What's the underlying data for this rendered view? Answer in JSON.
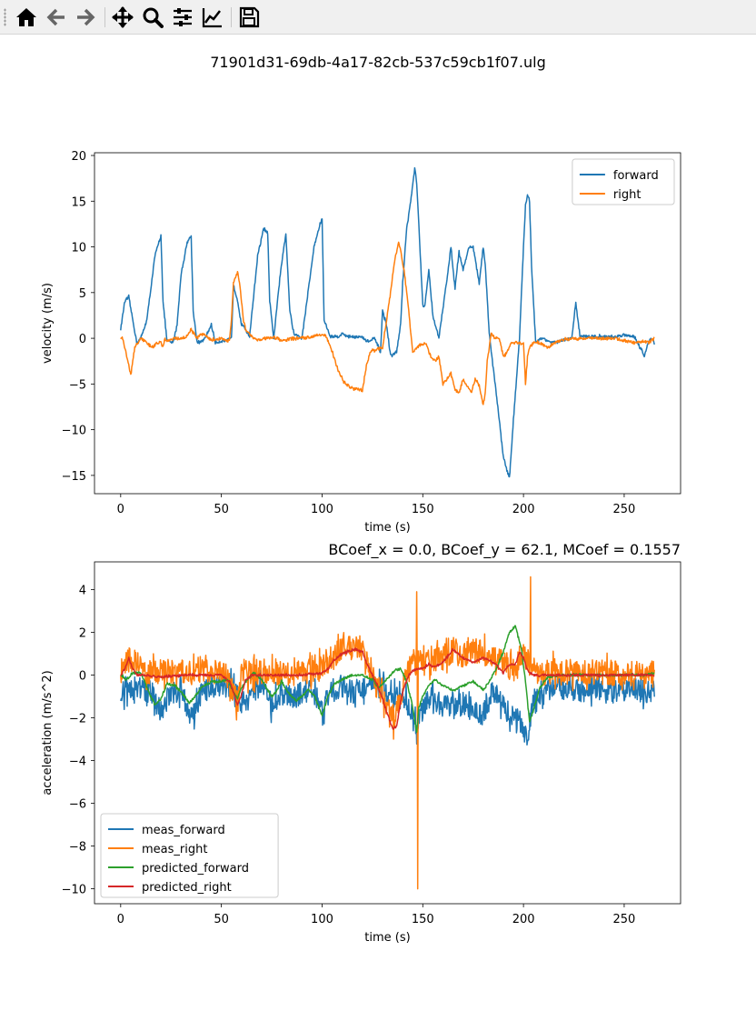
{
  "toolbar": {
    "buttons": [
      {
        "name": "home-icon",
        "label": "Home"
      },
      {
        "name": "back-icon",
        "label": "Back"
      },
      {
        "name": "forward-icon",
        "label": "Forward"
      },
      {
        "name": "pan-icon",
        "label": "Pan"
      },
      {
        "name": "zoom-icon",
        "label": "Zoom"
      },
      {
        "name": "subplots-icon",
        "label": "Subplots"
      },
      {
        "name": "customize-icon",
        "label": "Customize"
      },
      {
        "name": "save-icon",
        "label": "Save"
      }
    ]
  },
  "figure": {
    "suptitle": "71901d31-69db-4a17-82cb-537c59cb1f07.ulg"
  },
  "colors": {
    "blue": "#1f77b4",
    "orange": "#ff7f0e",
    "green": "#2ca02c",
    "red": "#d62728"
  },
  "chart_data": [
    {
      "type": "line",
      "title": "",
      "xlabel": "time (s)",
      "ylabel": "velocity (m/s)",
      "xlim": [
        -13,
        278
      ],
      "ylim": [
        -17,
        20.3
      ],
      "xticks": [
        0,
        50,
        100,
        150,
        200,
        250
      ],
      "xtick_labels": [
        "0",
        "50",
        "100",
        "150",
        "200",
        "250"
      ],
      "yticks": [
        20,
        15,
        10,
        5,
        0,
        -5,
        -10,
        -15
      ],
      "ytick_labels": [
        "20",
        "15",
        "10",
        "5",
        "0",
        "−5",
        "−10",
        "−15"
      ],
      "legend_position": "top-right",
      "series": [
        {
          "name": "forward",
          "color": "#1f77b4",
          "noise": 0.15,
          "x": [
            0,
            2,
            4,
            6,
            8,
            10,
            13,
            17,
            20,
            21,
            23,
            26,
            28,
            30,
            33,
            35,
            36,
            38,
            40,
            42,
            45,
            47,
            50,
            52,
            55,
            56,
            58,
            60,
            62,
            64,
            68,
            71,
            73,
            74,
            76,
            79,
            81,
            82,
            84,
            86,
            90,
            93,
            96,
            99,
            100,
            101,
            104,
            108,
            110,
            113,
            116,
            120,
            122,
            124,
            126,
            129,
            130,
            132,
            134,
            137,
            139,
            140,
            142,
            144,
            146,
            147,
            150,
            151,
            153,
            155,
            158,
            162,
            164,
            166,
            168,
            170,
            173,
            175,
            178,
            180,
            181,
            183,
            187,
            190,
            193,
            195,
            198,
            200,
            201,
            202,
            203,
            204,
            206,
            210,
            214,
            220,
            224,
            225,
            226,
            228,
            232,
            240,
            245,
            250,
            255,
            258,
            260,
            262,
            264,
            265
          ],
          "y": [
            1,
            4,
            4.5,
            2,
            -0.5,
            0,
            2,
            9,
            11.3,
            4,
            -0.3,
            -0.5,
            1.5,
            7,
            10.5,
            11.2,
            3,
            -0.5,
            -0.4,
            0,
            1.5,
            -0.5,
            -0.3,
            -0.3,
            0,
            5.8,
            4.2,
            1.5,
            1,
            0.2,
            9,
            12,
            11.5,
            4,
            0,
            6.5,
            10,
            11.5,
            3,
            0.5,
            0,
            5,
            10,
            12.5,
            13.1,
            2,
            0.2,
            0.2,
            0.5,
            0.2,
            0.2,
            0.1,
            -0.3,
            -0.3,
            0,
            -1.5,
            3,
            1.5,
            -2,
            -1.5,
            1.5,
            6,
            12,
            15,
            18.6,
            17,
            3.5,
            3.5,
            7.5,
            2.5,
            0,
            6.5,
            10,
            5.5,
            9.5,
            7.5,
            10,
            10,
            6,
            10,
            8,
            0.5,
            -7,
            -13,
            -15.3,
            -9,
            0,
            10,
            14.5,
            15.6,
            15,
            8,
            -0.3,
            0,
            -0.5,
            -0.2,
            0,
            2,
            3.8,
            0.3,
            0.2,
            0.2,
            0.1,
            0.4,
            0.2,
            -1,
            -2,
            -0.3,
            0,
            -0.6
          ]
        },
        {
          "name": "right",
          "color": "#ff7f0e",
          "noise": 0.15,
          "x": [
            0,
            1,
            3,
            5,
            7,
            10,
            13,
            16,
            18,
            20,
            21,
            22,
            23,
            25,
            28,
            32,
            35,
            38,
            40,
            42,
            45,
            50,
            53,
            54,
            55,
            56,
            58,
            59,
            60,
            61,
            62,
            64,
            66,
            69,
            72,
            75,
            78,
            80,
            85,
            90,
            95,
            100,
            102,
            105,
            108,
            111,
            114,
            117,
            120,
            122,
            124,
            127,
            130,
            132,
            134,
            136,
            137,
            138,
            139,
            141,
            143,
            145,
            147,
            150,
            152,
            154,
            156,
            158,
            160,
            162,
            164,
            166,
            168,
            170,
            172,
            174,
            176,
            178,
            180,
            181,
            182,
            184,
            186,
            188,
            190,
            192,
            194,
            196,
            198,
            200,
            201,
            202,
            203,
            205,
            208,
            212,
            217,
            225,
            235,
            245,
            255,
            260,
            262,
            265
          ],
          "y": [
            0,
            0,
            -2,
            -4,
            -1,
            0,
            -0.5,
            -1,
            -0.5,
            -0.5,
            -1,
            0,
            -0.5,
            0,
            0,
            0,
            1,
            0,
            0.5,
            0.3,
            -0.2,
            0,
            -0.3,
            -0.2,
            2,
            6,
            7.2,
            6.2,
            4,
            2,
            1,
            0.5,
            0,
            -0.2,
            0,
            0,
            0,
            -0.3,
            0,
            0,
            0.2,
            0.5,
            0.2,
            -1.5,
            -3.5,
            -4.8,
            -5.4,
            -5.5,
            -5.8,
            -3,
            -1.5,
            -1.2,
            -1,
            2,
            5,
            8.5,
            9.5,
            10.6,
            9.5,
            7,
            3,
            -1.5,
            -1,
            -0.6,
            -0.8,
            -2,
            -2.5,
            -2,
            -5,
            -4.5,
            -3.8,
            -5.6,
            -6,
            -4.5,
            -5.2,
            -6,
            -4.5,
            -5.2,
            -7.3,
            -6,
            -2.5,
            0.5,
            0,
            0,
            -2,
            -1.5,
            -0.5,
            -0.5,
            -0.5,
            -0.5,
            -5,
            -2,
            -1,
            -0.5,
            -0.5,
            -1,
            -0.3,
            0,
            0,
            0,
            -0.5,
            -0.3,
            -0.5,
            0
          ]
        }
      ]
    },
    {
      "type": "line",
      "title": "BCoef_x = 0.0, BCoef_y = 62.1, MCoef = 0.1557",
      "xlabel": "time (s)",
      "ylabel": "acceleration (m/s^2)",
      "xlim": [
        -13,
        278
      ],
      "ylim": [
        -10.7,
        5.3
      ],
      "xticks": [
        0,
        50,
        100,
        150,
        200,
        250
      ],
      "xtick_labels": [
        "0",
        "50",
        "100",
        "150",
        "200",
        "250"
      ],
      "yticks": [
        4,
        2,
        0,
        -2,
        -4,
        -6,
        -8,
        -10
      ],
      "ytick_labels": [
        "4",
        "2",
        "0",
        "−2",
        "−4",
        "−6",
        "−8",
        "−10"
      ],
      "legend_position": "lower-left",
      "series": [
        {
          "name": "meas_forward",
          "color": "#1f77b4",
          "noise": 0.55,
          "x": [
            0,
            5,
            10,
            15,
            20,
            25,
            30,
            33,
            36,
            40,
            45,
            50,
            55,
            60,
            65,
            70,
            75,
            80,
            85,
            90,
            95,
            100,
            105,
            110,
            115,
            120,
            125,
            130,
            135,
            140,
            145,
            147,
            150,
            155,
            160,
            165,
            170,
            175,
            180,
            185,
            190,
            195,
            200,
            202,
            205,
            210,
            215,
            220,
            225,
            230,
            235,
            240,
            245,
            250,
            255,
            260,
            265
          ],
          "y": [
            -0.8,
            -0.6,
            -0.6,
            -0.8,
            -1.7,
            -0.8,
            -0.7,
            -1.5,
            -2.0,
            -0.8,
            -0.6,
            -0.5,
            -0.5,
            -1.3,
            -0.6,
            -0.5,
            -1.4,
            -0.8,
            -1.2,
            -0.8,
            -0.7,
            -1.6,
            -0.7,
            -0.5,
            -0.8,
            -0.6,
            -0.5,
            -0.6,
            -1.0,
            -1.1,
            -1.6,
            -2.8,
            -1.5,
            -0.9,
            -1.4,
            -1.6,
            -1.3,
            -1.7,
            -1.9,
            -0.7,
            -1.5,
            -1.9,
            -2.4,
            -3.2,
            -1.0,
            -0.7,
            -0.7,
            -0.6,
            -0.7,
            -0.6,
            -0.6,
            -0.7,
            -0.8,
            -0.7,
            -0.6,
            -0.8,
            -0.7
          ]
        },
        {
          "name": "meas_right",
          "color": "#ff7f0e",
          "noise": 0.6,
          "spikes": [
            [
              147.5,
              -10.0
            ],
            [
              147.0,
              3.9
            ],
            [
              203.5,
              4.6
            ],
            [
              135.5,
              -3.0
            ],
            [
              57.5,
              -2.1
            ]
          ],
          "x": [
            0,
            3,
            6,
            10,
            15,
            20,
            25,
            30,
            35,
            40,
            45,
            50,
            53,
            55,
            58,
            60,
            65,
            70,
            75,
            80,
            85,
            90,
            95,
            100,
            105,
            110,
            115,
            118,
            120,
            123,
            127,
            130,
            133,
            136,
            140,
            145,
            148,
            152,
            156,
            160,
            165,
            170,
            175,
            180,
            185,
            190,
            193,
            196,
            198,
            200,
            203,
            206,
            210,
            215,
            220,
            230,
            240,
            250,
            260,
            265
          ],
          "y": [
            0.1,
            0.6,
            0.8,
            0.3,
            0.1,
            0.2,
            0.1,
            0.2,
            0.1,
            0.3,
            0.1,
            0.2,
            0,
            -0.5,
            -1.3,
            0.1,
            0.1,
            0.2,
            0.2,
            0.1,
            0.3,
            0.2,
            0.2,
            0.5,
            0.8,
            1.2,
            1.3,
            1.5,
            1.2,
            0.6,
            -0.5,
            -1.0,
            -1.6,
            -2.0,
            -0.5,
            0.6,
            0.6,
            0.5,
            0.7,
            0.8,
            1.2,
            0.9,
            1.1,
            1.1,
            0.7,
            0.6,
            0.4,
            0.3,
            0.8,
            1.0,
            0.6,
            0.1,
            0.1,
            0.2,
            0.1,
            0.2,
            0.1,
            0.1,
            0.1,
            0.1
          ]
        },
        {
          "name": "predicted_forward",
          "color": "#2ca02c",
          "noise": 0.05,
          "x": [
            0,
            3,
            6,
            10,
            14,
            17,
            20,
            23,
            27,
            31,
            34,
            37,
            40,
            45,
            50,
            53,
            56,
            58,
            60,
            63,
            66,
            70,
            73,
            75,
            77,
            80,
            83,
            87,
            90,
            93,
            96,
            100,
            103,
            106,
            110,
            115,
            120,
            125,
            128,
            130,
            133,
            136,
            139,
            142,
            145,
            147,
            148,
            150,
            153,
            156,
            160,
            165,
            170,
            175,
            180,
            183,
            186,
            190,
            193,
            196,
            199,
            201,
            203,
            205,
            208,
            212,
            218,
            225,
            235,
            245,
            255,
            260,
            265
          ],
          "y": [
            0,
            -0.2,
            0.1,
            0.1,
            -0.8,
            -1.4,
            -1.1,
            -0.4,
            -0.5,
            -0.9,
            -1.3,
            -1.0,
            -0.6,
            -0.3,
            -0.3,
            -0.2,
            -0.8,
            -1.1,
            -0.6,
            -0.2,
            0.1,
            -0.2,
            -0.7,
            -1.0,
            -0.8,
            -0.3,
            -0.8,
            -1.2,
            -1.0,
            -0.7,
            -0.9,
            -1.9,
            -1.0,
            -0.4,
            -0.2,
            0,
            0,
            -0.2,
            -0.6,
            -0.4,
            -0.1,
            0.2,
            0.3,
            -0.3,
            -1.5,
            -2.7,
            -1.5,
            -1.0,
            -0.5,
            -0.2,
            -0.5,
            -0.7,
            -0.5,
            -0.3,
            -0.7,
            -0.3,
            0.2,
            1.1,
            2.0,
            2.3,
            1.2,
            -0.3,
            -2.2,
            -1.6,
            -0.6,
            -0.1,
            0,
            0,
            0,
            0,
            0,
            0,
            0.1
          ]
        },
        {
          "name": "predicted_right",
          "color": "#d62728",
          "noise": 0.05,
          "x": [
            0,
            2,
            4,
            6,
            8,
            12,
            20,
            30,
            40,
            50,
            54,
            56,
            58,
            60,
            62,
            65,
            70,
            80,
            90,
            100,
            103,
            106,
            110,
            113,
            117,
            120,
            122,
            125,
            128,
            130,
            132,
            135,
            137,
            139,
            141,
            143,
            145,
            148,
            150,
            153,
            156,
            160,
            165,
            170,
            175,
            180,
            185,
            190,
            193,
            196,
            198,
            200,
            202,
            205,
            210,
            220,
            230,
            240,
            250,
            260,
            265
          ],
          "y": [
            0,
            0.3,
            0.8,
            0.3,
            0,
            0,
            -0.1,
            0,
            0,
            0,
            -0.3,
            -0.8,
            -1.4,
            -0.9,
            -0.2,
            0,
            0,
            0,
            0,
            0.1,
            0.3,
            0.7,
            1.0,
            1.1,
            1.2,
            1.1,
            0.6,
            0,
            -0.6,
            -1.1,
            -1.7,
            -2.5,
            -2.4,
            -1.2,
            -0.5,
            0,
            0.2,
            0.3,
            0.3,
            0.5,
            0.4,
            0.6,
            1.2,
            0.8,
            0.6,
            0.8,
            0.6,
            0.1,
            0.5,
            0.5,
            1.1,
            0.8,
            0.2,
            0,
            0,
            0,
            0,
            0,
            0,
            0,
            0
          ]
        }
      ]
    }
  ]
}
